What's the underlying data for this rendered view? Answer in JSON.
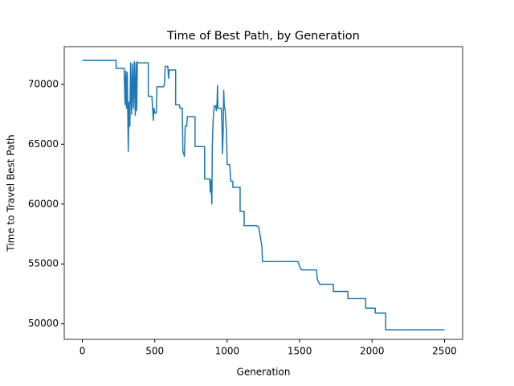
{
  "chart_data": {
    "type": "line",
    "title": "Time of Best Path, by Generation",
    "x_label": "Generation",
    "y_label": "Time to Travel Best Path",
    "color": "#1f77b4",
    "x": [
      0,
      233,
      233,
      289,
      289,
      295,
      300,
      305,
      310,
      317,
      322,
      328,
      333,
      340,
      345,
      352,
      358,
      365,
      370,
      375,
      380,
      383,
      455,
      455,
      480,
      490,
      494,
      500,
      510,
      515,
      560,
      567,
      572,
      590,
      595,
      600,
      644,
      644,
      670,
      675,
      690,
      694,
      705,
      710,
      720,
      725,
      778,
      778,
      844,
      844,
      880,
      883,
      888,
      894,
      897,
      903,
      910,
      920,
      925,
      930,
      933,
      936,
      960,
      965,
      967,
      972,
      976,
      980,
      985,
      995,
      1000,
      1017,
      1025,
      1039,
      1039,
      1089,
      1089,
      1117,
      1117,
      1200,
      1217,
      1239,
      1244,
      1489,
      1500,
      1511,
      1617,
      1622,
      1639,
      1733,
      1733,
      1833,
      1833,
      1956,
      1956,
      2022,
      2022,
      2094,
      2094,
      2500
    ],
    "values": [
      72000,
      72000,
      71340,
      71340,
      70900,
      68300,
      71100,
      68000,
      71000,
      64400,
      68500,
      66500,
      71800,
      67500,
      71700,
      68000,
      71900,
      67400,
      71800,
      67800,
      71900,
      71800,
      71800,
      69000,
      69000,
      67000,
      68000,
      67600,
      67600,
      69800,
      69800,
      70000,
      71500,
      71500,
      70500,
      71200,
      71200,
      68300,
      68300,
      68000,
      68000,
      64400,
      64000,
      66500,
      66500,
      67300,
      67300,
      64800,
      64800,
      62100,
      62100,
      61000,
      62000,
      60000,
      64800,
      67000,
      68200,
      68200,
      67800,
      68500,
      69900,
      68000,
      68000,
      66000,
      64200,
      66000,
      69500,
      68000,
      68000,
      66000,
      63300,
      63300,
      61900,
      61900,
      61400,
      61400,
      59400,
      59400,
      58200,
      58200,
      58100,
      56500,
      55200,
      55200,
      54800,
      54500,
      54500,
      53700,
      53300,
      53300,
      52700,
      52700,
      52100,
      52100,
      51300,
      51300,
      50900,
      50900,
      49500,
      49500
    ],
    "xlim": [
      -125,
      2625
    ],
    "ylim": [
      48700,
      73150
    ],
    "xticks": [
      0,
      500,
      1000,
      1500,
      2000,
      2500
    ],
    "yticks": [
      50000,
      55000,
      60000,
      65000,
      70000
    ]
  }
}
